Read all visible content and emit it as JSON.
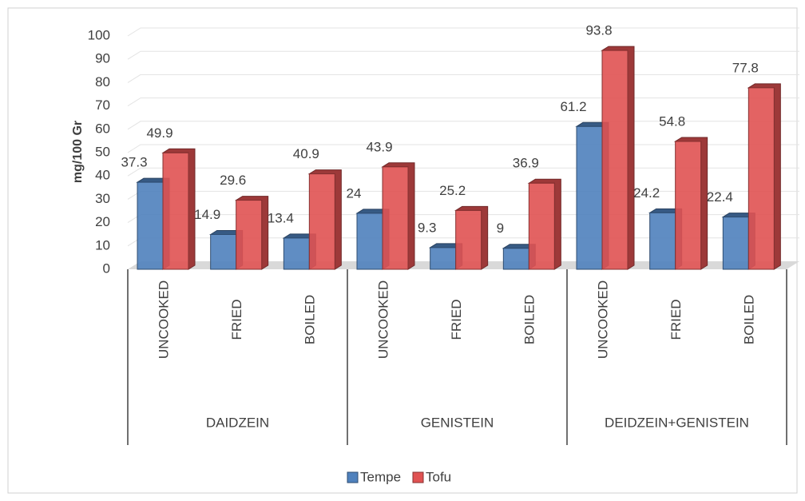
{
  "chart_data": {
    "type": "bar3d",
    "y_label": "mg/100 Gr",
    "categories": [
      "UNCOOKED",
      "FRIED",
      "BOILED",
      "UNCOOKED",
      "FRIED",
      "BOILED",
      "UNCOOKED",
      "FRIED",
      "BOILED"
    ],
    "groups": [
      "DAIDZEIN",
      "GENISTEIN",
      "DEIDZEIN+GENISTEIN"
    ],
    "series": [
      {
        "name": "Tempe",
        "color": "#4f81bd",
        "values": [
          37.3,
          14.9,
          13.4,
          24,
          9.3,
          9,
          61.2,
          24.2,
          22.4
        ]
      },
      {
        "name": "Tofu",
        "color": "#e05252",
        "values": [
          49.9,
          29.6,
          40.9,
          43.9,
          25.2,
          36.9,
          93.8,
          54.8,
          77.8
        ]
      }
    ],
    "ylim": [
      0,
      100
    ],
    "yticks": [
      0,
      10,
      20,
      30,
      40,
      50,
      60,
      70,
      80,
      90,
      100
    ],
    "grid": true,
    "legend": "bottom"
  }
}
